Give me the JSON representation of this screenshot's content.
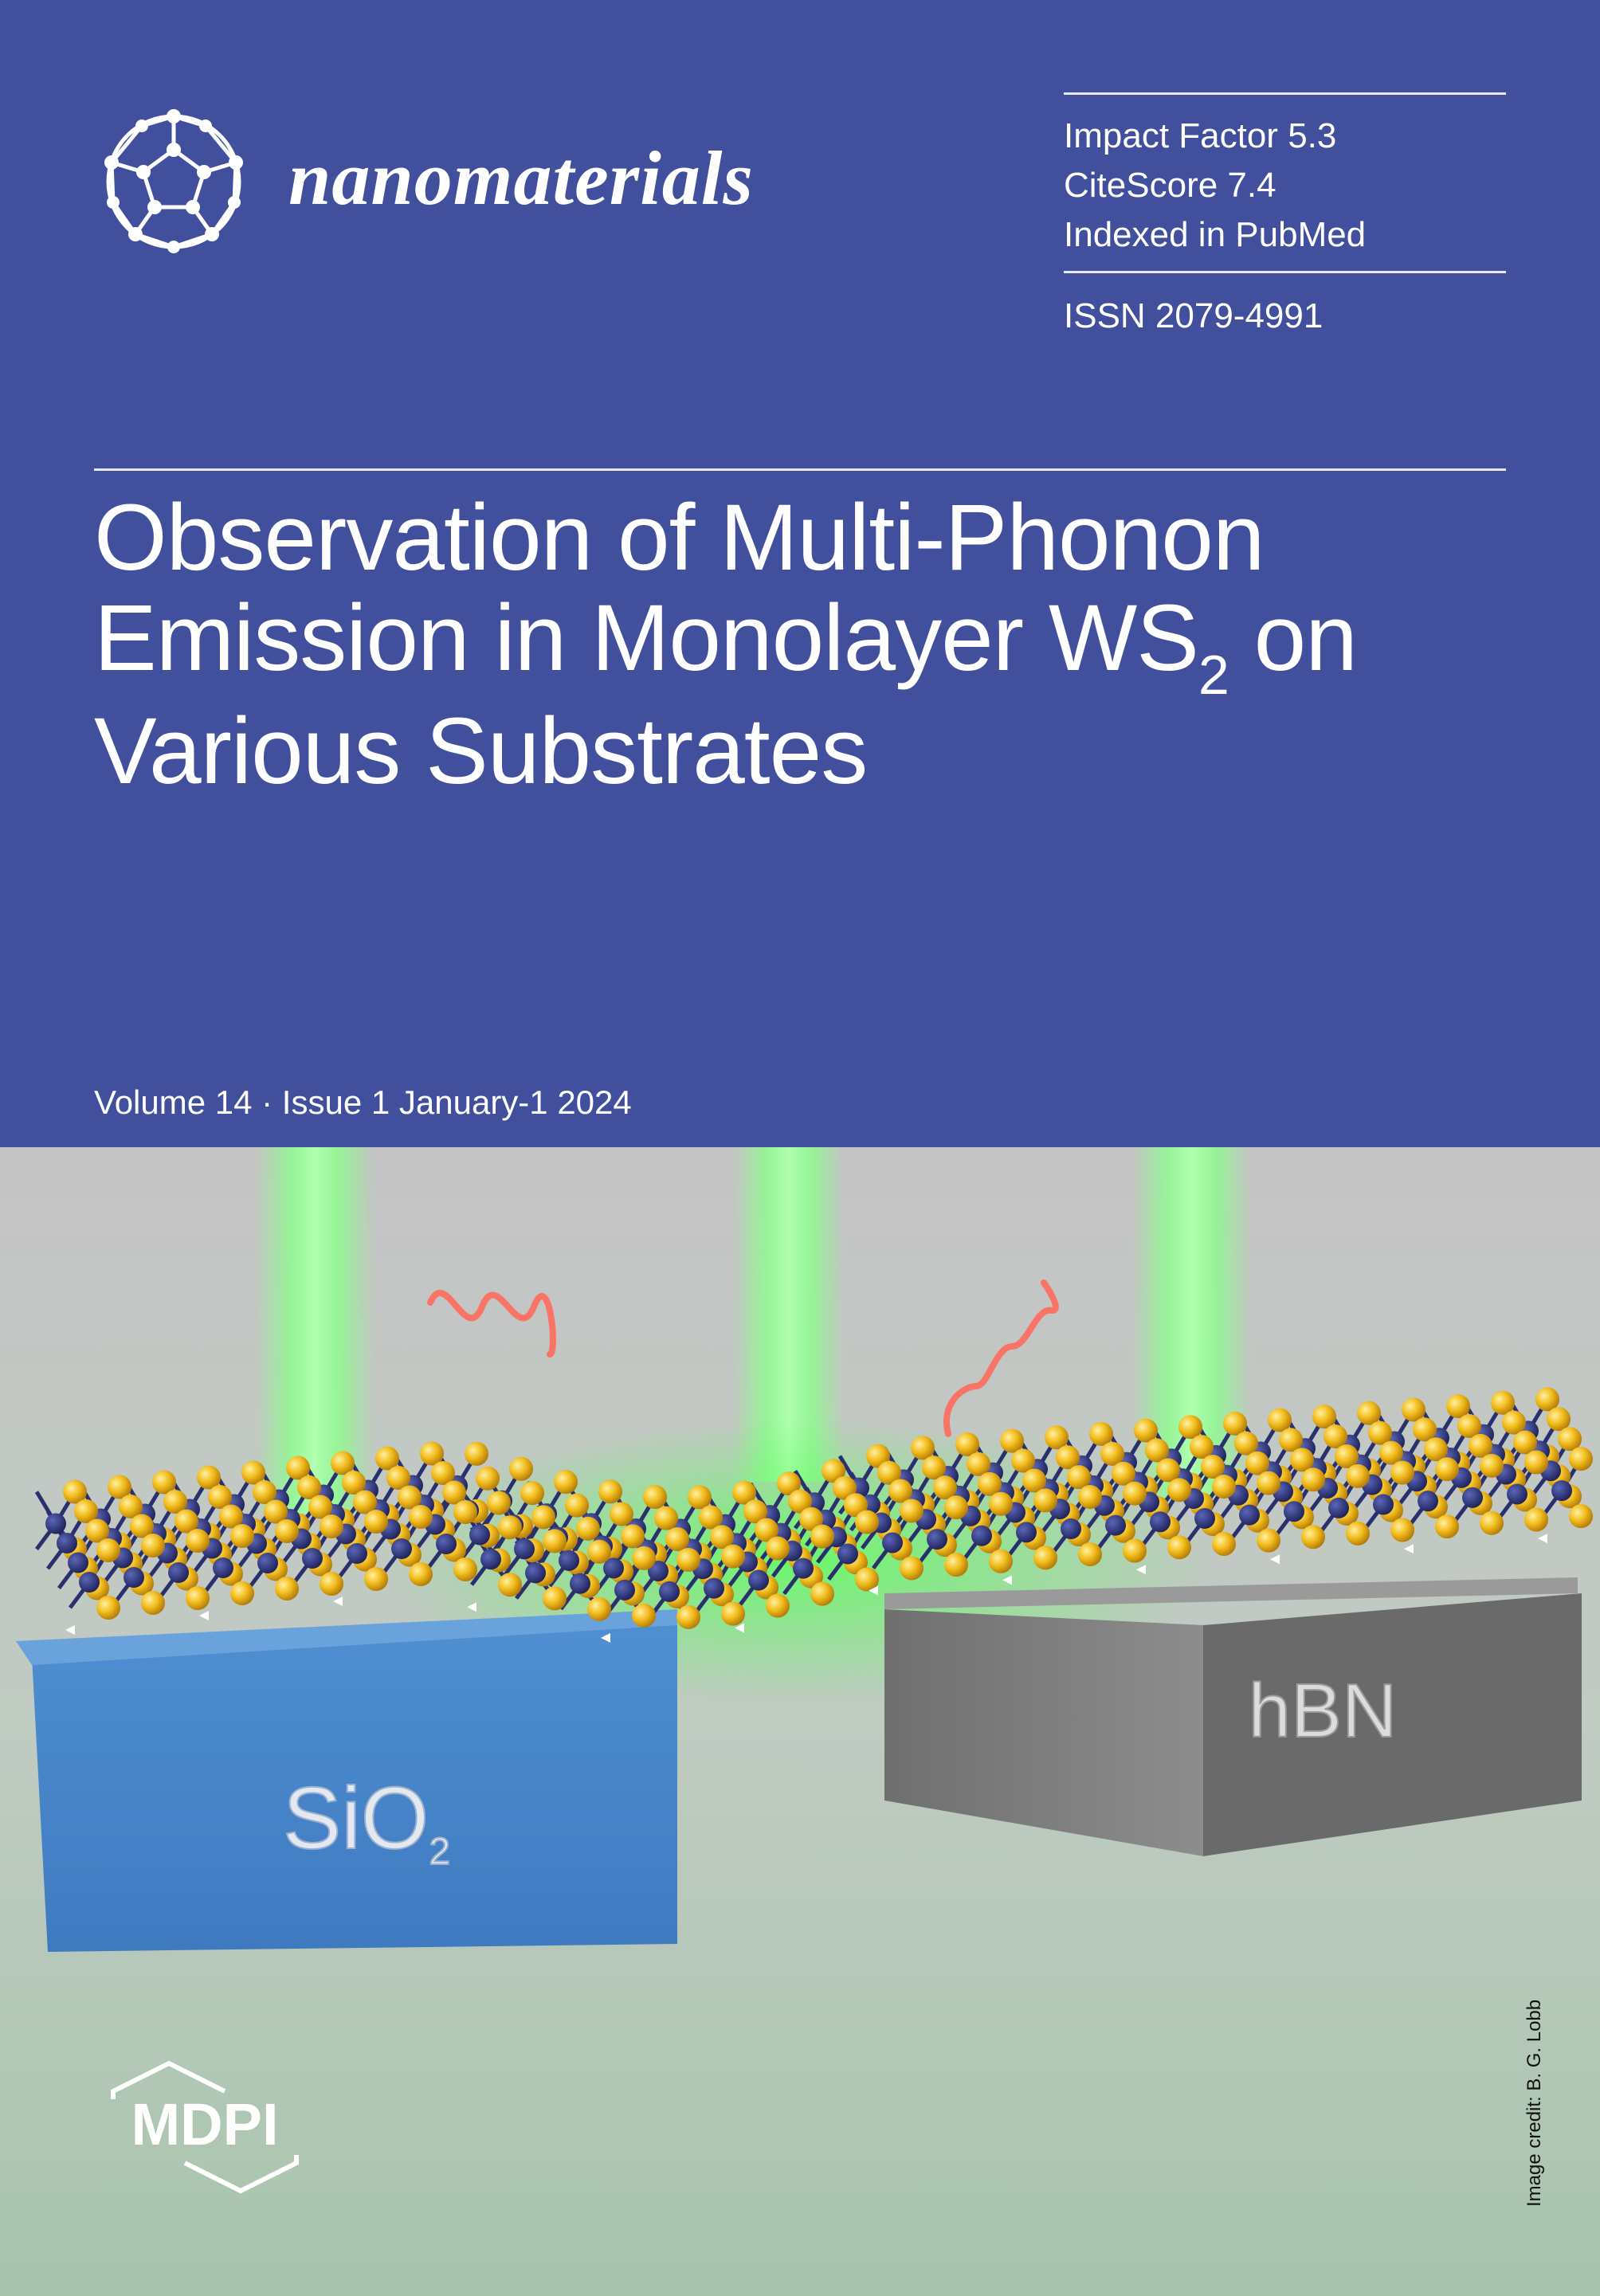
{
  "journal": {
    "name": "nanomaterials"
  },
  "metrics": {
    "impact_factor": "Impact Factor 5.3",
    "citescore": "CiteScore 7.4",
    "indexed": "Indexed in PubMed",
    "issn": "ISSN 2079-4991"
  },
  "article": {
    "title_line1": "Observation of Multi-Phonon",
    "title_line2_a": "Emission in Monolayer WS",
    "title_line2_sub": "2",
    "title_line2_b": " on",
    "title_line3": "Various Substrates"
  },
  "issue": {
    "volume_text": "Volume 14 · Issue 1 January-1 2024"
  },
  "illustration": {
    "left_substrate": "SiO",
    "left_substrate_sub": "2",
    "right_substrate": "hBN"
  },
  "credit": "Image credit: B. G. Lobb",
  "publisher": {
    "name": "MDPI"
  },
  "colors": {
    "header_blue": "#424f9c",
    "sio2_blue": "#4a88cc",
    "hbn_gray": "#7c7c7c",
    "laser_green": "#8cff8c",
    "sulfur_yellow": "#f0b81a",
    "tungsten_navy": "#2a2f6e"
  }
}
